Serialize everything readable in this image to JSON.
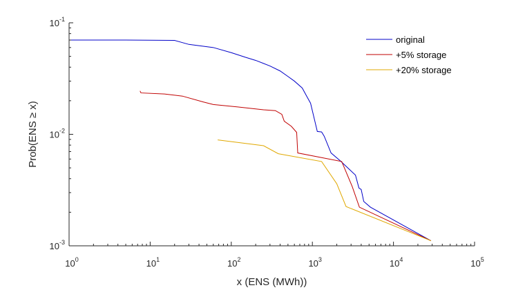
{
  "chart_data": {
    "type": "line",
    "title": "",
    "xlabel": "x (ENS (MWh))",
    "ylabel": "Prob(ENS ≥ x)",
    "xscale": "log",
    "yscale": "log",
    "xlim": [
      1,
      100000
    ],
    "ylim": [
      0.001,
      0.1
    ],
    "grid": false,
    "legend_position": "top-right",
    "x_ticks": [
      {
        "base": "10",
        "exp": "0",
        "value": 1
      },
      {
        "base": "10",
        "exp": "1",
        "value": 10
      },
      {
        "base": "10",
        "exp": "2",
        "value": 100
      },
      {
        "base": "10",
        "exp": "3",
        "value": 1000
      },
      {
        "base": "10",
        "exp": "4",
        "value": 10000
      },
      {
        "base": "10",
        "exp": "5",
        "value": 100000
      }
    ],
    "y_ticks": [
      {
        "base": "10",
        "exp": "-3",
        "value": 0.001
      },
      {
        "base": "10",
        "exp": "-2",
        "value": 0.01
      },
      {
        "base": "10",
        "exp": "-1",
        "value": 0.1
      }
    ],
    "series": [
      {
        "name": "original",
        "color": "#0000c8",
        "points": [
          [
            1,
            0.07
          ],
          [
            5,
            0.07
          ],
          [
            20,
            0.0695
          ],
          [
            30,
            0.064
          ],
          [
            60,
            0.06
          ],
          [
            100,
            0.054
          ],
          [
            150,
            0.049
          ],
          [
            200,
            0.046
          ],
          [
            300,
            0.041
          ],
          [
            400,
            0.037
          ],
          [
            500,
            0.033
          ],
          [
            600,
            0.03
          ],
          [
            750,
            0.026
          ],
          [
            850,
            0.022
          ],
          [
            950,
            0.019
          ],
          [
            1050,
            0.014
          ],
          [
            1150,
            0.0106
          ],
          [
            1300,
            0.0105
          ],
          [
            1400,
            0.0096
          ],
          [
            1700,
            0.0068
          ],
          [
            2200,
            0.0058
          ],
          [
            2900,
            0.0048
          ],
          [
            3400,
            0.0043
          ],
          [
            3750,
            0.0033
          ],
          [
            4000,
            0.0032
          ],
          [
            4300,
            0.0025
          ],
          [
            5200,
            0.00222
          ],
          [
            29000,
            0.00111
          ]
        ]
      },
      {
        "name": "+5% storage",
        "color": "#c00000",
        "points": [
          [
            7.5,
            0.0245
          ],
          [
            7.7,
            0.0235
          ],
          [
            15,
            0.023
          ],
          [
            25,
            0.022
          ],
          [
            45,
            0.0195
          ],
          [
            60,
            0.0185
          ],
          [
            120,
            0.0176
          ],
          [
            250,
            0.0166
          ],
          [
            350,
            0.0163
          ],
          [
            420,
            0.0151
          ],
          [
            450,
            0.0131
          ],
          [
            550,
            0.0118
          ],
          [
            640,
            0.0104
          ],
          [
            660,
            0.0068
          ],
          [
            2300,
            0.0057
          ],
          [
            3100,
            0.0034
          ],
          [
            3800,
            0.00222
          ],
          [
            29000,
            0.00111
          ]
        ]
      },
      {
        "name": "+20% storage",
        "color": "#e0a800",
        "points": [
          [
            68,
            0.0089
          ],
          [
            250,
            0.0079
          ],
          [
            380,
            0.0067
          ],
          [
            1300,
            0.0057
          ],
          [
            2000,
            0.0036
          ],
          [
            2600,
            0.00225
          ],
          [
            29000,
            0.00111
          ]
        ]
      }
    ]
  }
}
